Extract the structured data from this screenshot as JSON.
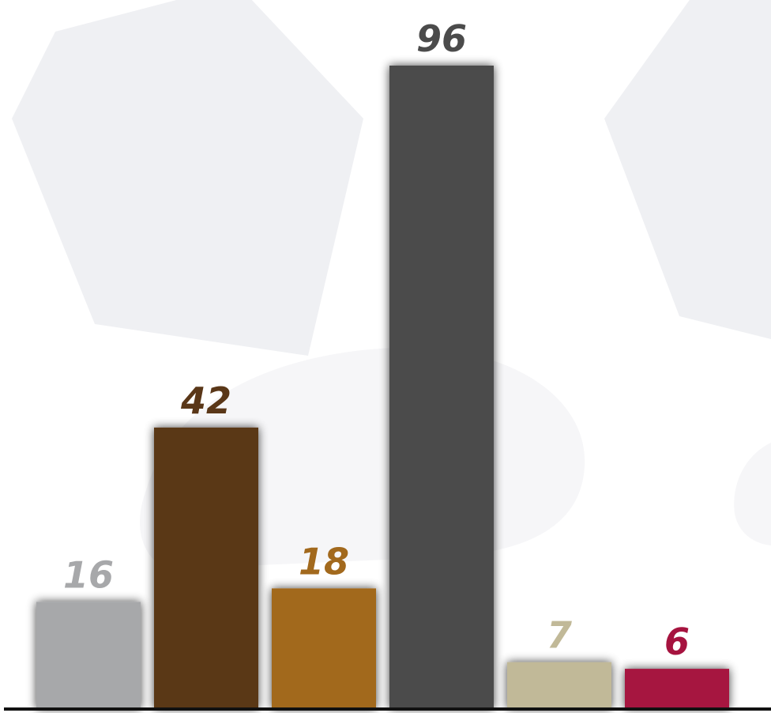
{
  "chart_data": {
    "type": "bar",
    "title": "",
    "xlabel": "",
    "ylabel": "",
    "categories": [
      "",
      "",
      "",
      "",
      "",
      ""
    ],
    "values": [
      16,
      42,
      18,
      96,
      7,
      6
    ],
    "colors": [
      "#a7a8aa",
      "#5a3718",
      "#a2691d",
      "#4b4b4b",
      "#c1b998",
      "#a6133f"
    ],
    "ylim": [
      0,
      96
    ],
    "grid": false,
    "legend": "none",
    "data_labels": [
      "16",
      "42",
      "18",
      "96",
      "7",
      "6"
    ]
  }
}
